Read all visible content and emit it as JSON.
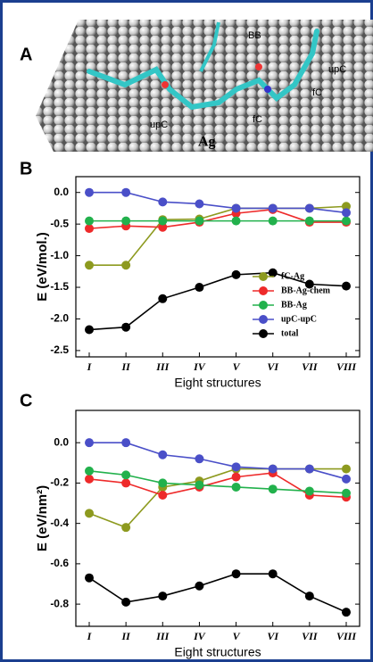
{
  "panel_a": {
    "letter": "A",
    "labels": [
      "BB",
      "upC",
      "fC",
      "upC",
      "fC",
      "Ag"
    ]
  },
  "chart_data": [
    {
      "type": "line",
      "panel_label": "B",
      "ylabel": "E (eV/mol.)",
      "xlabel": "Eight structures",
      "categories": [
        "I",
        "II",
        "III",
        "IV",
        "V",
        "VI",
        "VII",
        "VIII"
      ],
      "ylim": [
        -2.6,
        0.25
      ],
      "yticks": [
        {
          "value": 0,
          "label": "0.0"
        },
        {
          "value": -0.5,
          "label": "-0.5"
        },
        {
          "value": -1,
          "label": "-1.0"
        },
        {
          "value": -1.5,
          "label": "-1.5"
        },
        {
          "value": -2,
          "label": "-2.0"
        },
        {
          "value": -2.5,
          "label": "-2.5"
        }
      ],
      "legend": "lower right",
      "series": [
        {
          "name": "fC-Ag",
          "color": "#8d9a1f",
          "values": [
            -1.15,
            -1.15,
            -0.43,
            -0.42,
            -0.25,
            -0.25,
            -0.25,
            -0.22
          ]
        },
        {
          "name": "BB-Ag-chem",
          "color": "#ee2a2a",
          "values": [
            -0.57,
            -0.53,
            -0.55,
            -0.47,
            -0.33,
            -0.27,
            -0.47,
            -0.47
          ]
        },
        {
          "name": "BB-Ag",
          "color": "#22b14c",
          "values": [
            -0.45,
            -0.45,
            -0.45,
            -0.45,
            -0.45,
            -0.45,
            -0.45,
            -0.45
          ]
        },
        {
          "name": "upC-upC",
          "color": "#4a4fc8",
          "values": [
            0.0,
            0.0,
            -0.15,
            -0.18,
            -0.25,
            -0.25,
            -0.25,
            -0.32
          ]
        },
        {
          "name": "total",
          "color": "#000000",
          "values": [
            -2.17,
            -2.13,
            -1.68,
            -1.5,
            -1.3,
            -1.27,
            -1.45,
            -1.48
          ]
        }
      ]
    },
    {
      "type": "line",
      "panel_label": "C",
      "ylabel": "E (eV/nm²)",
      "xlabel": "Eight structures",
      "categories": [
        "I",
        "II",
        "III",
        "IV",
        "V",
        "VI",
        "VII",
        "VIII"
      ],
      "ylim": [
        -0.91,
        0.16
      ],
      "yticks": [
        {
          "value": 0,
          "label": "0.0"
        },
        {
          "value": -0.2,
          "label": "-0.2"
        },
        {
          "value": -0.4,
          "label": "-0.4"
        },
        {
          "value": -0.6,
          "label": "-0.6"
        },
        {
          "value": -0.8,
          "label": "-0.8"
        }
      ],
      "series": [
        {
          "name": "fC-Ag",
          "color": "#8d9a1f",
          "values": [
            -0.35,
            -0.42,
            -0.22,
            -0.19,
            -0.13,
            -0.13,
            -0.13,
            -0.13
          ]
        },
        {
          "name": "BB-Ag-chem",
          "color": "#ee2a2a",
          "values": [
            -0.18,
            -0.2,
            -0.26,
            -0.22,
            -0.17,
            -0.15,
            -0.26,
            -0.27
          ]
        },
        {
          "name": "BB-Ag",
          "color": "#22b14c",
          "values": [
            -0.14,
            -0.16,
            -0.2,
            -0.21,
            -0.22,
            -0.23,
            -0.24,
            -0.25
          ]
        },
        {
          "name": "upC-upC",
          "color": "#4a4fc8",
          "values": [
            0.0,
            0.0,
            -0.06,
            -0.08,
            -0.12,
            -0.13,
            -0.13,
            -0.18
          ]
        },
        {
          "name": "total",
          "color": "#000000",
          "values": [
            -0.67,
            -0.79,
            -0.76,
            -0.71,
            -0.65,
            -0.65,
            -0.76,
            -0.84
          ]
        }
      ]
    }
  ]
}
